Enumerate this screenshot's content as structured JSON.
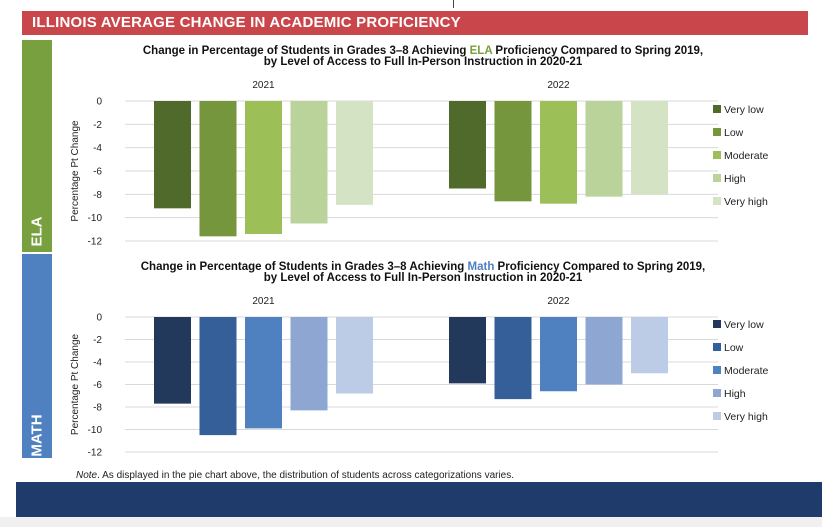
{
  "banner": {
    "title": "ILLINOIS AVERAGE CHANGE IN ACADEMIC PROFICIENCY"
  },
  "tabs": {
    "ela": "ELA",
    "math": "MATH"
  },
  "note": {
    "label": "Note",
    "text": ". As displayed in the pie chart above, the distribution of students across categorizations varies."
  },
  "colors": {
    "banner": "#c9474b",
    "ela_tab": "#78a03e",
    "math_tab": "#4f81c1",
    "footer": "#1e3b6b"
  },
  "chart_data": [
    {
      "type": "bar",
      "title_prefix": "Change in Percentage of Students in Grades 3–8 Achieving ",
      "title_highlight": "ELA",
      "title_suffix": " Proficiency Compared to Spring 2019,",
      "subtitle": "by Level of Access to Full In-Person Instruction in 2020-21",
      "highlight_color": "#78a03e",
      "categories": [
        "2021",
        "2022"
      ],
      "ylabel": "Percentage Pt Change",
      "ylim": [
        -12,
        0
      ],
      "yticks": [
        0,
        -2,
        -4,
        -6,
        -8,
        -10,
        -12
      ],
      "grid": true,
      "legend_position": "right",
      "series": [
        {
          "name": "Very low",
          "color": "#4f6a2b",
          "values": [
            -9.2,
            -7.5
          ]
        },
        {
          "name": "Low",
          "color": "#76963e",
          "values": [
            -11.6,
            -8.6
          ]
        },
        {
          "name": "Moderate",
          "color": "#9cbf57",
          "values": [
            -11.4,
            -8.8
          ]
        },
        {
          "name": "High",
          "color": "#bad39b",
          "values": [
            -10.5,
            -8.2
          ]
        },
        {
          "name": "Very high",
          "color": "#d4e3c4",
          "values": [
            -8.9,
            -8.0
          ]
        }
      ]
    },
    {
      "type": "bar",
      "title_prefix": "Change in Percentage of Students in Grades 3–8 Achieving ",
      "title_highlight": "Math",
      "title_suffix": " Proficiency Compared to Spring 2019,",
      "subtitle": "by Level of Access to Full In-Person Instruction in 2020-21",
      "highlight_color": "#4f81c1",
      "categories": [
        "2021",
        "2022"
      ],
      "ylabel": "Percentage Pt Change",
      "ylim": [
        -12,
        0
      ],
      "yticks": [
        0,
        -2,
        -4,
        -6,
        -8,
        -10,
        -12
      ],
      "grid": true,
      "legend_position": "right",
      "series": [
        {
          "name": "Very low",
          "color": "#23395b",
          "values": [
            -7.7,
            -5.9
          ]
        },
        {
          "name": "Low",
          "color": "#345f99",
          "values": [
            -10.5,
            -7.3
          ]
        },
        {
          "name": "Moderate",
          "color": "#4f81c1",
          "values": [
            -9.9,
            -6.6
          ]
        },
        {
          "name": "High",
          "color": "#8ea7d2",
          "values": [
            -8.3,
            -6.0
          ]
        },
        {
          "name": "Very high",
          "color": "#bccbe6",
          "values": [
            -6.8,
            -5.0
          ]
        }
      ]
    }
  ]
}
